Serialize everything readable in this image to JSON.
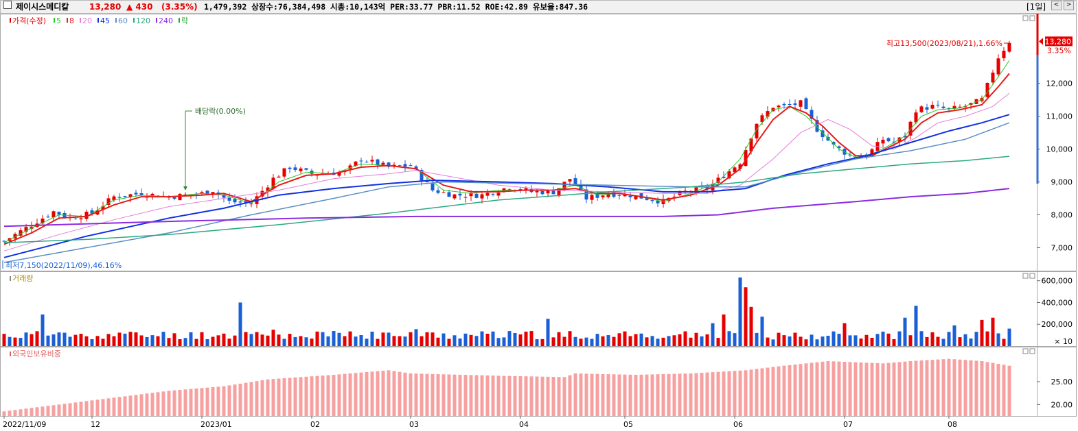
{
  "header": {
    "name": "제이시스메디칼",
    "price": "13,280",
    "change": "▲ 430",
    "change_pct": "(3.35%)",
    "stats": "1,479,392  상장수:76,384,498 시총:10,143억 PER:33.77 PBR:11.52 ROE:42.89 유보율:847.36",
    "period": "[1일]",
    "prev_btn": "<",
    "next_btn": ">"
  },
  "colors": {
    "up": "#e60000",
    "down": "#1a5fd6",
    "ma5": "#22cc22",
    "ma8": "#e61a1a",
    "ma20": "#e67adf",
    "ma45": "#1030e0",
    "ma60": "#5a8ec6",
    "ma120": "#2aa882",
    "ma240": "#8a2be2",
    "foreign": "#f7a0a0"
  },
  "legend_price": [
    {
      "label": "가격(수정)",
      "color": "#e60000"
    },
    {
      "label": "5",
      "color": "#22cc22"
    },
    {
      "label": "8",
      "color": "#e61a1a"
    },
    {
      "label": "20",
      "color": "#e67adf"
    },
    {
      "label": "45",
      "color": "#1030e0"
    },
    {
      "label": "60",
      "color": "#5a8ec6"
    },
    {
      "label": "120",
      "color": "#2aa882"
    },
    {
      "label": "240",
      "color": "#8a2be2"
    },
    {
      "label": "락",
      "color": "#22aa22"
    }
  ],
  "legend_volume": "거래량",
  "legend_foreign": "외국인보유비중",
  "annotations": {
    "high": "최고13,500(2023/08/21),1.66%",
    "low": "최저7,150(2022/11/09),46.16%",
    "dividend": "배당락(0.00%)",
    "last_price": "13,280",
    "last_pct": "3.35%",
    "volume_unit": "× 10"
  },
  "chart_data": [
    {
      "type": "candlestick",
      "title": "가격(수정)",
      "ylim": [
        6300,
        14100
      ],
      "y_ticks": [
        7000,
        8000,
        9000,
        10000,
        11000,
        12000
      ],
      "y_tick_labels": [
        "7,000",
        "8,000",
        "9,000",
        "10,000",
        "11,000",
        "12,000"
      ],
      "x_tick_labels": [
        "2022/11/09",
        "12",
        "2023/01",
        "02",
        "03",
        "04",
        "05",
        "06",
        "07",
        "08"
      ],
      "x_tick_index": [
        0,
        16,
        36,
        56,
        74,
        94,
        113,
        133,
        153,
        172
      ],
      "anchors": [
        [
          0,
          7200
        ],
        [
          5,
          7700
        ],
        [
          9,
          8100
        ],
        [
          12,
          7900
        ],
        [
          16,
          8050
        ],
        [
          20,
          8550
        ],
        [
          25,
          8650
        ],
        [
          30,
          8550
        ],
        [
          36,
          8650
        ],
        [
          38,
          8750
        ],
        [
          41,
          8400
        ],
        [
          45,
          8350
        ],
        [
          49,
          9100
        ],
        [
          52,
          9450
        ],
        [
          56,
          9250
        ],
        [
          62,
          9300
        ],
        [
          65,
          9700
        ],
        [
          70,
          9450
        ],
        [
          74,
          9500
        ],
        [
          78,
          8750
        ],
        [
          82,
          8600
        ],
        [
          87,
          8600
        ],
        [
          92,
          8850
        ],
        [
          96,
          8700
        ],
        [
          100,
          8700
        ],
        [
          103,
          9100
        ],
        [
          106,
          8500
        ],
        [
          110,
          8650
        ],
        [
          114,
          8600
        ],
        [
          120,
          8400
        ],
        [
          124,
          8700
        ],
        [
          128,
          8800
        ],
        [
          131,
          9200
        ],
        [
          134,
          9600
        ],
        [
          137,
          10800
        ],
        [
          140,
          11300
        ],
        [
          142,
          11300
        ],
        [
          145,
          11400
        ],
        [
          148,
          10600
        ],
        [
          151,
          10100
        ],
        [
          154,
          9800
        ],
        [
          157,
          9800
        ],
        [
          160,
          10300
        ],
        [
          162,
          10200
        ],
        [
          164,
          10400
        ],
        [
          166,
          11200
        ],
        [
          169,
          11300
        ],
        [
          172,
          11200
        ],
        [
          175,
          11300
        ],
        [
          178,
          11500
        ],
        [
          181,
          12800
        ],
        [
          183,
          13280
        ]
      ],
      "ma": [
        {
          "name": "5",
          "pts": [
            [
              0,
              7150
            ],
            [
              5,
              7600
            ],
            [
              10,
              8000
            ],
            [
              15,
              7950
            ],
            [
              20,
              8450
            ],
            [
              25,
              8600
            ],
            [
              30,
              8550
            ],
            [
              36,
              8650
            ],
            [
              40,
              8600
            ],
            [
              45,
              8350
            ],
            [
              50,
              9000
            ],
            [
              55,
              9300
            ],
            [
              60,
              9250
            ],
            [
              65,
              9550
            ],
            [
              70,
              9500
            ],
            [
              75,
              9400
            ],
            [
              80,
              8750
            ],
            [
              85,
              8650
            ],
            [
              90,
              8750
            ],
            [
              95,
              8750
            ],
            [
              100,
              8750
            ],
            [
              104,
              8900
            ],
            [
              108,
              8600
            ],
            [
              112,
              8650
            ],
            [
              116,
              8550
            ],
            [
              120,
              8400
            ],
            [
              125,
              8650
            ],
            [
              130,
              9000
            ],
            [
              134,
              9700
            ],
            [
              137,
              10600
            ],
            [
              140,
              11200
            ],
            [
              143,
              11300
            ],
            [
              146,
              11000
            ],
            [
              149,
              10500
            ],
            [
              152,
              10000
            ],
            [
              155,
              9750
            ],
            [
              158,
              9850
            ],
            [
              161,
              10100
            ],
            [
              164,
              10400
            ],
            [
              167,
              11000
            ],
            [
              170,
              11200
            ],
            [
              174,
              11250
            ],
            [
              178,
              11500
            ],
            [
              181,
              12200
            ],
            [
              183,
              12700
            ]
          ]
        },
        {
          "name": "8",
          "pts": [
            [
              0,
              7100
            ],
            [
              5,
              7450
            ],
            [
              10,
              7900
            ],
            [
              15,
              7950
            ],
            [
              20,
              8300
            ],
            [
              25,
              8550
            ],
            [
              30,
              8550
            ],
            [
              36,
              8600
            ],
            [
              40,
              8650
            ],
            [
              45,
              8400
            ],
            [
              50,
              8900
            ],
            [
              55,
              9200
            ],
            [
              60,
              9250
            ],
            [
              65,
              9450
            ],
            [
              70,
              9500
            ],
            [
              75,
              9400
            ],
            [
              80,
              8900
            ],
            [
              85,
              8700
            ],
            [
              90,
              8700
            ],
            [
              95,
              8750
            ],
            [
              100,
              8750
            ],
            [
              104,
              8800
            ],
            [
              108,
              8650
            ],
            [
              112,
              8650
            ],
            [
              116,
              8550
            ],
            [
              120,
              8450
            ],
            [
              125,
              8600
            ],
            [
              130,
              8900
            ],
            [
              134,
              9400
            ],
            [
              137,
              10200
            ],
            [
              140,
              10900
            ],
            [
              143,
              11300
            ],
            [
              146,
              11100
            ],
            [
              149,
              10700
            ],
            [
              152,
              10200
            ],
            [
              155,
              9800
            ],
            [
              158,
              9800
            ],
            [
              161,
              10050
            ],
            [
              164,
              10300
            ],
            [
              167,
              10800
            ],
            [
              170,
              11100
            ],
            [
              174,
              11200
            ],
            [
              178,
              11350
            ],
            [
              181,
              11900
            ],
            [
              183,
              12300
            ]
          ]
        },
        {
          "name": "20",
          "pts": [
            [
              0,
              6900
            ],
            [
              10,
              7400
            ],
            [
              20,
              7850
            ],
            [
              30,
              8250
            ],
            [
              40,
              8500
            ],
            [
              50,
              8750
            ],
            [
              60,
              9100
            ],
            [
              70,
              9250
            ],
            [
              75,
              9350
            ],
            [
              80,
              9200
            ],
            [
              90,
              8900
            ],
            [
              100,
              8750
            ],
            [
              110,
              8700
            ],
            [
              120,
              8650
            ],
            [
              128,
              8650
            ],
            [
              134,
              8900
            ],
            [
              140,
              9700
            ],
            [
              145,
              10500
            ],
            [
              150,
              10900
            ],
            [
              154,
              10600
            ],
            [
              158,
              10100
            ],
            [
              162,
              10000
            ],
            [
              166,
              10350
            ],
            [
              170,
              10800
            ],
            [
              175,
              11000
            ],
            [
              180,
              11300
            ],
            [
              183,
              11700
            ]
          ]
        },
        {
          "name": "45",
          "pts": [
            [
              0,
              6700
            ],
            [
              15,
              7350
            ],
            [
              30,
              7900
            ],
            [
              40,
              8200
            ],
            [
              50,
              8600
            ],
            [
              60,
              8800
            ],
            [
              70,
              8950
            ],
            [
              78,
              9050
            ],
            [
              90,
              9000
            ],
            [
              100,
              8950
            ],
            [
              110,
              8850
            ],
            [
              120,
              8700
            ],
            [
              128,
              8700
            ],
            [
              135,
              8800
            ],
            [
              142,
              9200
            ],
            [
              150,
              9550
            ],
            [
              157,
              9800
            ],
            [
              165,
              10200
            ],
            [
              172,
              10550
            ],
            [
              178,
              10800
            ],
            [
              183,
              11050
            ]
          ]
        },
        {
          "name": "60",
          "pts": [
            [
              0,
              6550
            ],
            [
              15,
              7000
            ],
            [
              30,
              7450
            ],
            [
              45,
              8000
            ],
            [
              60,
              8500
            ],
            [
              70,
              8850
            ],
            [
              80,
              9000
            ],
            [
              95,
              8950
            ],
            [
              110,
              8900
            ],
            [
              125,
              8850
            ],
            [
              135,
              8850
            ],
            [
              145,
              9300
            ],
            [
              155,
              9700
            ],
            [
              165,
              9950
            ],
            [
              175,
              10300
            ],
            [
              183,
              10800
            ]
          ]
        },
        {
          "name": "120",
          "pts": [
            [
              0,
              7150
            ],
            [
              15,
              7250
            ],
            [
              30,
              7400
            ],
            [
              50,
              7700
            ],
            [
              70,
              8050
            ],
            [
              90,
              8450
            ],
            [
              110,
              8700
            ],
            [
              125,
              8850
            ],
            [
              135,
              9000
            ],
            [
              145,
              9250
            ],
            [
              155,
              9400
            ],
            [
              165,
              9550
            ],
            [
              175,
              9650
            ],
            [
              183,
              9780
            ]
          ]
        },
        {
          "name": "240",
          "pts": [
            [
              0,
              7650
            ],
            [
              30,
              7800
            ],
            [
              55,
              7900
            ],
            [
              75,
              7950
            ],
            [
              95,
              7950
            ],
            [
              120,
              7950
            ],
            [
              130,
              8000
            ],
            [
              140,
              8200
            ],
            [
              155,
              8400
            ],
            [
              165,
              8550
            ],
            [
              175,
              8650
            ],
            [
              183,
              8800
            ]
          ]
        }
      ]
    },
    {
      "type": "bar",
      "title": "거래량",
      "ylim": [
        0,
        680000
      ],
      "y_ticks": [
        200000,
        400000,
        600000
      ],
      "y_tick_labels": [
        "200,000",
        "400,000",
        "600,000"
      ],
      "volume_peaks": [
        [
          7,
          290000
        ],
        [
          43,
          400000
        ],
        [
          49,
          150000
        ],
        [
          75,
          155000
        ],
        [
          99,
          250000
        ],
        [
          129,
          210000
        ],
        [
          131,
          290000
        ],
        [
          134,
          630000
        ],
        [
          135,
          540000
        ],
        [
          136,
          360000
        ],
        [
          138,
          270000
        ],
        [
          153,
          210000
        ],
        [
          164,
          260000
        ],
        [
          166,
          370000
        ],
        [
          173,
          190000
        ],
        [
          178,
          240000
        ],
        [
          180,
          260000
        ],
        [
          183,
          160000
        ]
      ]
    },
    {
      "type": "bar",
      "title": "외국인보유비중",
      "ylim": [
        17.5,
        32.5
      ],
      "y_ticks": [
        20,
        25
      ],
      "y_tick_labels": [
        "20.00",
        "25.00"
      ],
      "ratio_anchors": [
        [
          0,
          18.5
        ],
        [
          10,
          20.0
        ],
        [
          20,
          21.5
        ],
        [
          30,
          23.0
        ],
        [
          40,
          24.0
        ],
        [
          48,
          25.5
        ],
        [
          60,
          26.5
        ],
        [
          70,
          27.5
        ],
        [
          74,
          26.8
        ],
        [
          90,
          26.3
        ],
        [
          102,
          26.0
        ],
        [
          104,
          26.8
        ],
        [
          115,
          26.5
        ],
        [
          125,
          26.8
        ],
        [
          135,
          27.5
        ],
        [
          142,
          28.5
        ],
        [
          150,
          29.5
        ],
        [
          160,
          29.0
        ],
        [
          165,
          29.5
        ],
        [
          172,
          30.0
        ],
        [
          178,
          29.5
        ],
        [
          183,
          28.5
        ]
      ]
    }
  ]
}
